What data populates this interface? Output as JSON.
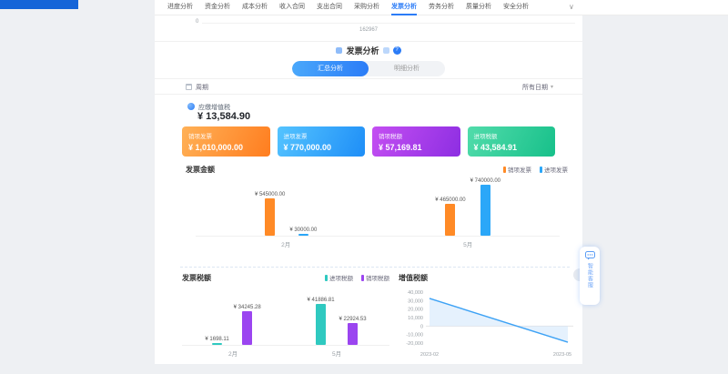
{
  "nav": {
    "tabs": [
      {
        "label": "进度分析",
        "active": false
      },
      {
        "label": "资金分析",
        "active": false
      },
      {
        "label": "成本分析",
        "active": false
      },
      {
        "label": "收入合同",
        "active": false
      },
      {
        "label": "支出合同",
        "active": false
      },
      {
        "label": "采购分析",
        "active": false
      },
      {
        "label": "发票分析",
        "active": true
      },
      {
        "label": "劳务分析",
        "active": false
      },
      {
        "label": "质量分析",
        "active": false
      },
      {
        "label": "安全分析",
        "active": false
      }
    ],
    "chevron": "∨"
  },
  "remnant": {
    "axis_zero": "0",
    "value": "162967"
  },
  "header": {
    "title": "发票分析",
    "help_label": "?"
  },
  "toggle": {
    "options": [
      {
        "label": "汇总分析",
        "active": true
      },
      {
        "label": "明细分析",
        "active": false
      }
    ]
  },
  "filter": {
    "period_label": "周期",
    "date_range_label": "所有日期"
  },
  "kpi": {
    "label": "应缴增值税",
    "value": "¥ 13,584.90"
  },
  "summary_cards": [
    {
      "label": "销项发票",
      "value": "¥ 1,010,000.00",
      "gradient": [
        "#ffb157",
        "#ff7d1f"
      ]
    },
    {
      "label": "进项发票",
      "value": "¥ 770,000.00",
      "gradient": [
        "#55c4ff",
        "#1e8ef7"
      ]
    },
    {
      "label": "销项税额",
      "value": "¥ 57,169.81",
      "gradient": [
        "#c44ff2",
        "#8d2ee2"
      ]
    },
    {
      "label": "进项税额",
      "value": "¥ 43,584.91",
      "gradient": [
        "#52dcab",
        "#17c08a"
      ]
    }
  ],
  "chart_data": [
    {
      "type": "bar",
      "title": "发票金额",
      "categories": [
        "2月",
        "5月"
      ],
      "series": [
        {
          "name": "销项发票",
          "color": "#ff8a26",
          "values": [
            545000,
            465000
          ]
        },
        {
          "name": "进项发票",
          "color": "#2ba7f8",
          "values": [
            30000,
            740000
          ]
        }
      ],
      "ymax": 740000,
      "value_prefix": "¥ ",
      "legend_position": "top-right"
    },
    {
      "type": "bar",
      "title": "发票税额",
      "categories": [
        "2月",
        "5月"
      ],
      "series": [
        {
          "name": "进项税额",
          "color": "#2fc9c0",
          "values": [
            1698.11,
            41886.81
          ]
        },
        {
          "name": "销项税额",
          "color": "#9b45f0",
          "values": [
            34245.28,
            22924.53
          ]
        }
      ],
      "ymax": 45000,
      "value_prefix": "¥ ",
      "legend_position": "top-right"
    },
    {
      "type": "line",
      "title": "增值税额",
      "x": [
        "2023-02",
        "2023-05"
      ],
      "values": [
        32547.17,
        -18962.28
      ],
      "yticks": [
        40000,
        30000,
        20000,
        10000,
        0,
        -10000,
        -20000
      ],
      "ylim": [
        -20000,
        40000
      ],
      "color": "#3da2f5",
      "area_color": "#cfe6fb",
      "grid": "zero-line-only"
    }
  ],
  "assistant": {
    "label": "智能客服"
  }
}
